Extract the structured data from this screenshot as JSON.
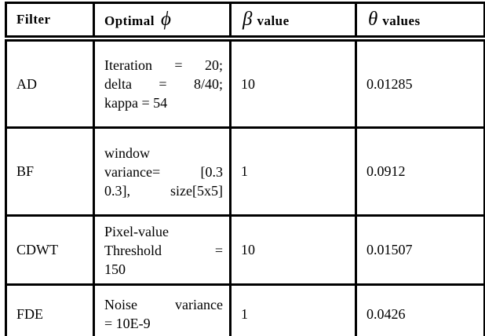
{
  "colors": {
    "border": "#000000",
    "text": "#000000",
    "background": "#ffffff"
  },
  "table": {
    "columns": [
      {
        "header": {
          "text": "Filter"
        }
      },
      {
        "header": {
          "text": "Optimal",
          "symbol": "ϕ"
        }
      },
      {
        "header": {
          "symbol": "β",
          "text": "value"
        }
      },
      {
        "header": {
          "symbol": "θ",
          "text": "values"
        }
      }
    ],
    "rows": [
      {
        "filter": "AD",
        "optimal_lines": [
          "Iteration = 20;",
          "delta = 8/40;",
          "kappa = 54"
        ],
        "beta_value": "10",
        "theta_value": "0.01285"
      },
      {
        "filter": "BF",
        "optimal_lines": [
          "window",
          "variance= [0.3",
          "0.3], size[5x5]"
        ],
        "beta_value": "1",
        "theta_value": "0.0912"
      },
      {
        "filter": "CDWT",
        "optimal_lines": [
          "Pixel-value",
          "Threshold =",
          "150"
        ],
        "beta_value": "10",
        "theta_value": "0.01507"
      },
      {
        "filter": "FDE",
        "optimal_lines": [
          "Noise variance",
          "= 10E-9"
        ],
        "beta_value": "1",
        "theta_value": "0.0426"
      }
    ]
  }
}
